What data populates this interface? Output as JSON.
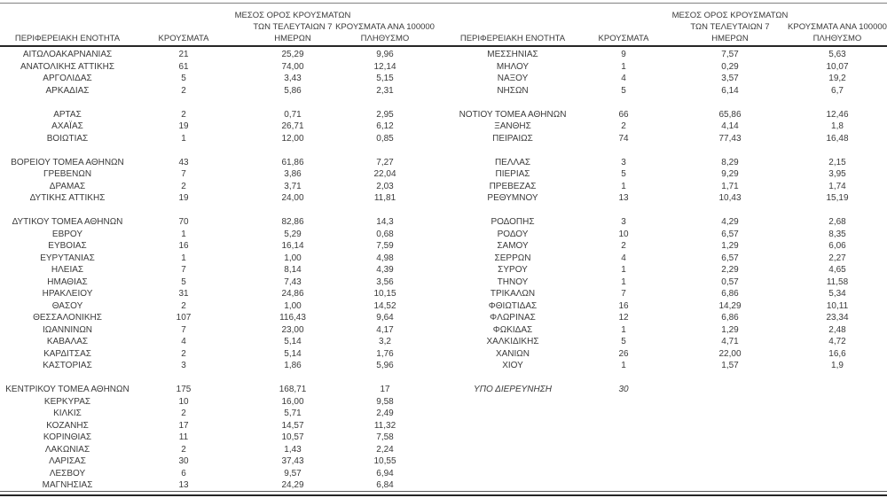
{
  "colors": {
    "text": "#3a3a3a",
    "thin_rule": "#808080",
    "thick_rule": "#262626",
    "background": "#ffffff"
  },
  "table": {
    "headers": {
      "region": "ΠΕΡΙΦΕΡΕΙΑΚΗ ΕΝΟΤΗΤΑ",
      "cases": "ΚΡΟΥΣΜΑΤΑ",
      "avg7_line1": "ΜΕΣΟΣ ΟΡΟΣ ΚΡΟΥΣΜΑΤΩΝ",
      "avg7_line2": "ΤΩΝ ΤΕΛΕΥΤΑΙΩΝ 7",
      "avg7_line3": "ΗΜΕΡΩΝ",
      "per100k_line1": "ΚΡΟΥΣΜΑΤΑ ΑΝΑ 100000",
      "per100k_line2": "ΠΛΗΘΥΣΜΟ"
    },
    "left_rows": [
      {
        "region": "ΑΙΤΩΛΟΑΚΑΡΝΑΝΙΑΣ",
        "cases": "21",
        "avg7": "25,29",
        "per100k": "9,96"
      },
      {
        "region": "ΑΝΑΤΟΛΙΚΗΣ ΑΤΤΙΚΗΣ",
        "cases": "61",
        "avg7": "74,00",
        "per100k": "12,14"
      },
      {
        "region": "ΑΡΓΟΛΙΔΑΣ",
        "cases": "5",
        "avg7": "3,43",
        "per100k": "5,15"
      },
      {
        "region": "ΑΡΚΑΔΙΑΣ",
        "cases": "2",
        "avg7": "5,86",
        "per100k": "2,31"
      },
      null,
      {
        "region": "ΑΡΤΑΣ",
        "cases": "2",
        "avg7": "0,71",
        "per100k": "2,95"
      },
      {
        "region": "ΑΧΑΪΑΣ",
        "cases": "19",
        "avg7": "26,71",
        "per100k": "6,12"
      },
      {
        "region": "ΒΟΙΩΤΙΑΣ",
        "cases": "1",
        "avg7": "12,00",
        "per100k": "0,85"
      },
      null,
      {
        "region": "ΒΟΡΕΙΟΥ ΤΟΜΕΑ ΑΘΗΝΩΝ",
        "cases": "43",
        "avg7": "61,86",
        "per100k": "7,27"
      },
      {
        "region": "ΓΡΕΒΕΝΩΝ",
        "cases": "7",
        "avg7": "3,86",
        "per100k": "22,04"
      },
      {
        "region": "ΔΡΑΜΑΣ",
        "cases": "2",
        "avg7": "3,71",
        "per100k": "2,03"
      },
      {
        "region": "ΔΥΤΙΚΗΣ ΑΤΤΙΚΗΣ",
        "cases": "19",
        "avg7": "24,00",
        "per100k": "11,81"
      },
      null,
      {
        "region": "ΔΥΤΙΚΟΥ ΤΟΜΕΑ ΑΘΗΝΩΝ",
        "cases": "70",
        "avg7": "82,86",
        "per100k": "14,3"
      },
      {
        "region": "ΕΒΡΟΥ",
        "cases": "1",
        "avg7": "5,29",
        "per100k": "0,68"
      },
      {
        "region": "ΕΥΒΟΙΑΣ",
        "cases": "16",
        "avg7": "16,14",
        "per100k": "7,59"
      },
      {
        "region": "ΕΥΡΥΤΑΝΙΑΣ",
        "cases": "1",
        "avg7": "1,00",
        "per100k": "4,98"
      },
      {
        "region": "ΗΛΕΙΑΣ",
        "cases": "7",
        "avg7": "8,14",
        "per100k": "4,39"
      },
      {
        "region": "ΗΜΑΘΙΑΣ",
        "cases": "5",
        "avg7": "7,43",
        "per100k": "3,56"
      },
      {
        "region": "ΗΡΑΚΛΕΙΟΥ",
        "cases": "31",
        "avg7": "24,86",
        "per100k": "10,15"
      },
      {
        "region": "ΘΑΣΟΥ",
        "cases": "2",
        "avg7": "1,00",
        "per100k": "14,52"
      },
      {
        "region": "ΘΕΣΣΑΛΟΝΙΚΗΣ",
        "cases": "107",
        "avg7": "116,43",
        "per100k": "9,64"
      },
      {
        "region": "ΙΩΑΝΝΙΝΩΝ",
        "cases": "7",
        "avg7": "23,00",
        "per100k": "4,17"
      },
      {
        "region": "ΚΑΒΑΛΑΣ",
        "cases": "4",
        "avg7": "5,14",
        "per100k": "3,2"
      },
      {
        "region": "ΚΑΡΔΙΤΣΑΣ",
        "cases": "2",
        "avg7": "5,14",
        "per100k": "1,76"
      },
      {
        "region": "ΚΑΣΤΟΡΙΑΣ",
        "cases": "3",
        "avg7": "1,86",
        "per100k": "5,96"
      },
      null,
      {
        "region": "ΚΕΝΤΡΙΚΟΥ ΤΟΜΕΑ ΑΘΗΝΩΝ",
        "cases": "175",
        "avg7": "168,71",
        "per100k": "17"
      },
      {
        "region": "ΚΕΡΚΥΡΑΣ",
        "cases": "10",
        "avg7": "16,00",
        "per100k": "9,58"
      },
      {
        "region": "ΚΙΛΚΙΣ",
        "cases": "2",
        "avg7": "5,71",
        "per100k": "2,49"
      },
      {
        "region": "ΚΟΖΑΝΗΣ",
        "cases": "17",
        "avg7": "14,57",
        "per100k": "11,32"
      },
      {
        "region": "ΚΟΡΙΝΘΙΑΣ",
        "cases": "11",
        "avg7": "10,57",
        "per100k": "7,58"
      },
      {
        "region": "ΛΑΚΩΝΙΑΣ",
        "cases": "2",
        "avg7": "1,43",
        "per100k": "2,24"
      },
      {
        "region": "ΛΑΡΙΣΑΣ",
        "cases": "30",
        "avg7": "37,43",
        "per100k": "10,55"
      },
      {
        "region": "ΛΕΣΒΟΥ",
        "cases": "6",
        "avg7": "9,57",
        "per100k": "6,94"
      },
      {
        "region": "ΜΑΓΝΗΣΙΑΣ",
        "cases": "13",
        "avg7": "24,29",
        "per100k": "6,84"
      }
    ],
    "right_rows": [
      {
        "region": "ΜΕΣΣΗΝΙΑΣ",
        "cases": "9",
        "avg7": "7,57",
        "per100k": "5,63"
      },
      {
        "region": "ΜΗΛΟΥ",
        "cases": "1",
        "avg7": "0,29",
        "per100k": "10,07"
      },
      {
        "region": "ΝΑΞΟΥ",
        "cases": "4",
        "avg7": "3,57",
        "per100k": "19,2"
      },
      {
        "region": "ΝΗΣΩΝ",
        "cases": "5",
        "avg7": "6,14",
        "per100k": "6,7"
      },
      null,
      {
        "region": "ΝΟΤΙΟΥ ΤΟΜΕΑ ΑΘΗΝΩΝ",
        "cases": "66",
        "avg7": "65,86",
        "per100k": "12,46"
      },
      {
        "region": "ΞΑΝΘΗΣ",
        "cases": "2",
        "avg7": "4,14",
        "per100k": "1,8"
      },
      {
        "region": "ΠΕΙΡΑΙΩΣ",
        "cases": "74",
        "avg7": "77,43",
        "per100k": "16,48"
      },
      null,
      {
        "region": "ΠΕΛΛΑΣ",
        "cases": "3",
        "avg7": "8,29",
        "per100k": "2,15"
      },
      {
        "region": "ΠΙΕΡΙΑΣ",
        "cases": "5",
        "avg7": "9,29",
        "per100k": "3,95"
      },
      {
        "region": "ΠΡΕΒΕΖΑΣ",
        "cases": "1",
        "avg7": "1,71",
        "per100k": "1,74"
      },
      {
        "region": "ΡΕΘΥΜΝΟΥ",
        "cases": "13",
        "avg7": "10,43",
        "per100k": "15,19"
      },
      null,
      {
        "region": "ΡΟΔΟΠΗΣ",
        "cases": "3",
        "avg7": "4,29",
        "per100k": "2,68"
      },
      {
        "region": "ΡΟΔΟΥ",
        "cases": "10",
        "avg7": "6,57",
        "per100k": "8,35"
      },
      {
        "region": "ΣΑΜΟΥ",
        "cases": "2",
        "avg7": "1,29",
        "per100k": "6,06"
      },
      {
        "region": "ΣΕΡΡΩΝ",
        "cases": "4",
        "avg7": "6,57",
        "per100k": "2,27"
      },
      {
        "region": "ΣΥΡΟΥ",
        "cases": "1",
        "avg7": "2,29",
        "per100k": "4,65"
      },
      {
        "region": "ΤΗΝΟΥ",
        "cases": "1",
        "avg7": "0,57",
        "per100k": "11,58"
      },
      {
        "region": "ΤΡΙΚΑΛΩΝ",
        "cases": "7",
        "avg7": "6,86",
        "per100k": "5,34"
      },
      {
        "region": "ΦΘΙΩΤΙΔΑΣ",
        "cases": "16",
        "avg7": "14,29",
        "per100k": "10,11"
      },
      {
        "region": "ΦΛΩΡΙΝΑΣ",
        "cases": "12",
        "avg7": "6,86",
        "per100k": "23,34"
      },
      {
        "region": "ΦΩΚΙΔΑΣ",
        "cases": "1",
        "avg7": "1,29",
        "per100k": "2,48"
      },
      {
        "region": "ΧΑΛΚΙΔΙΚΗΣ",
        "cases": "5",
        "avg7": "4,71",
        "per100k": "4,72"
      },
      {
        "region": "ΧΑΝΙΩΝ",
        "cases": "26",
        "avg7": "22,00",
        "per100k": "16,6"
      },
      {
        "region": "ΧΙΟΥ",
        "cases": "1",
        "avg7": "1,57",
        "per100k": "1,9"
      },
      null,
      {
        "region": "ΥΠΟ ΔΙΕΡΕΥΝΗΣΗ",
        "cases": "30",
        "avg7": "",
        "per100k": "",
        "italic": true
      },
      null,
      null,
      null,
      null,
      null,
      null,
      null,
      null
    ]
  }
}
